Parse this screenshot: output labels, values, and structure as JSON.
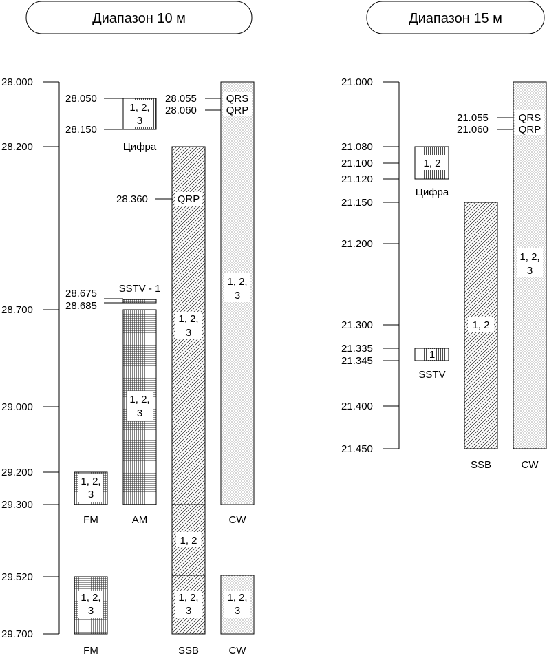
{
  "left_panel": {
    "title": "Диапазон 10 м",
    "axis_ticks": [
      "28.000",
      "28.200",
      "28.700",
      "29.000",
      "29.200",
      "29.300",
      "29.520",
      "29.700"
    ],
    "markers": [
      {
        "freq": "28.050",
        "text": ""
      },
      {
        "freq": "28.150",
        "text": ""
      },
      {
        "freq": "28.055",
        "text": "QRS"
      },
      {
        "freq": "28.060",
        "text": "QRP"
      },
      {
        "freq": "28.360",
        "text": "QRP"
      },
      {
        "freq": "28.675",
        "text": ""
      },
      {
        "freq": "28.685",
        "text": ""
      }
    ],
    "blocks": [
      {
        "label": "1, 2,\n3",
        "caption": "Цифра"
      },
      {
        "label": "",
        "caption": "SSTV - 1"
      },
      {
        "label": "1, 2,\n3",
        "caption": "AM"
      },
      {
        "label": "1, 2,\n3",
        "caption": "FM"
      },
      {
        "label": "1, 2,\n3",
        "caption": "FM"
      },
      {
        "label": "1, 2,\n3",
        "caption": ""
      },
      {
        "label": "1, 2",
        "caption": ""
      },
      {
        "label": "1, 2,\n3",
        "caption": "SSB"
      },
      {
        "label": "1, 2,\n3",
        "caption": "CW"
      },
      {
        "label": "1, 2,\n3",
        "caption": "CW"
      }
    ]
  },
  "right_panel": {
    "title": "Диапазон 15 м",
    "axis_ticks": [
      "21.000",
      "21.080",
      "21.100",
      "21.120",
      "21.150",
      "21.200",
      "21.300",
      "21.335",
      "21.345",
      "21.400",
      "21.450"
    ],
    "markers": [
      {
        "freq": "21.055",
        "text": "QRS"
      },
      {
        "freq": "21.060",
        "text": "QRP"
      }
    ],
    "blocks": [
      {
        "label": "1, 2",
        "caption": "Цифра"
      },
      {
        "label": "1",
        "caption": "SSTV"
      },
      {
        "label": "1, 2",
        "caption": "SSB"
      },
      {
        "label": "1, 2,\n3",
        "caption": "CW"
      }
    ]
  }
}
